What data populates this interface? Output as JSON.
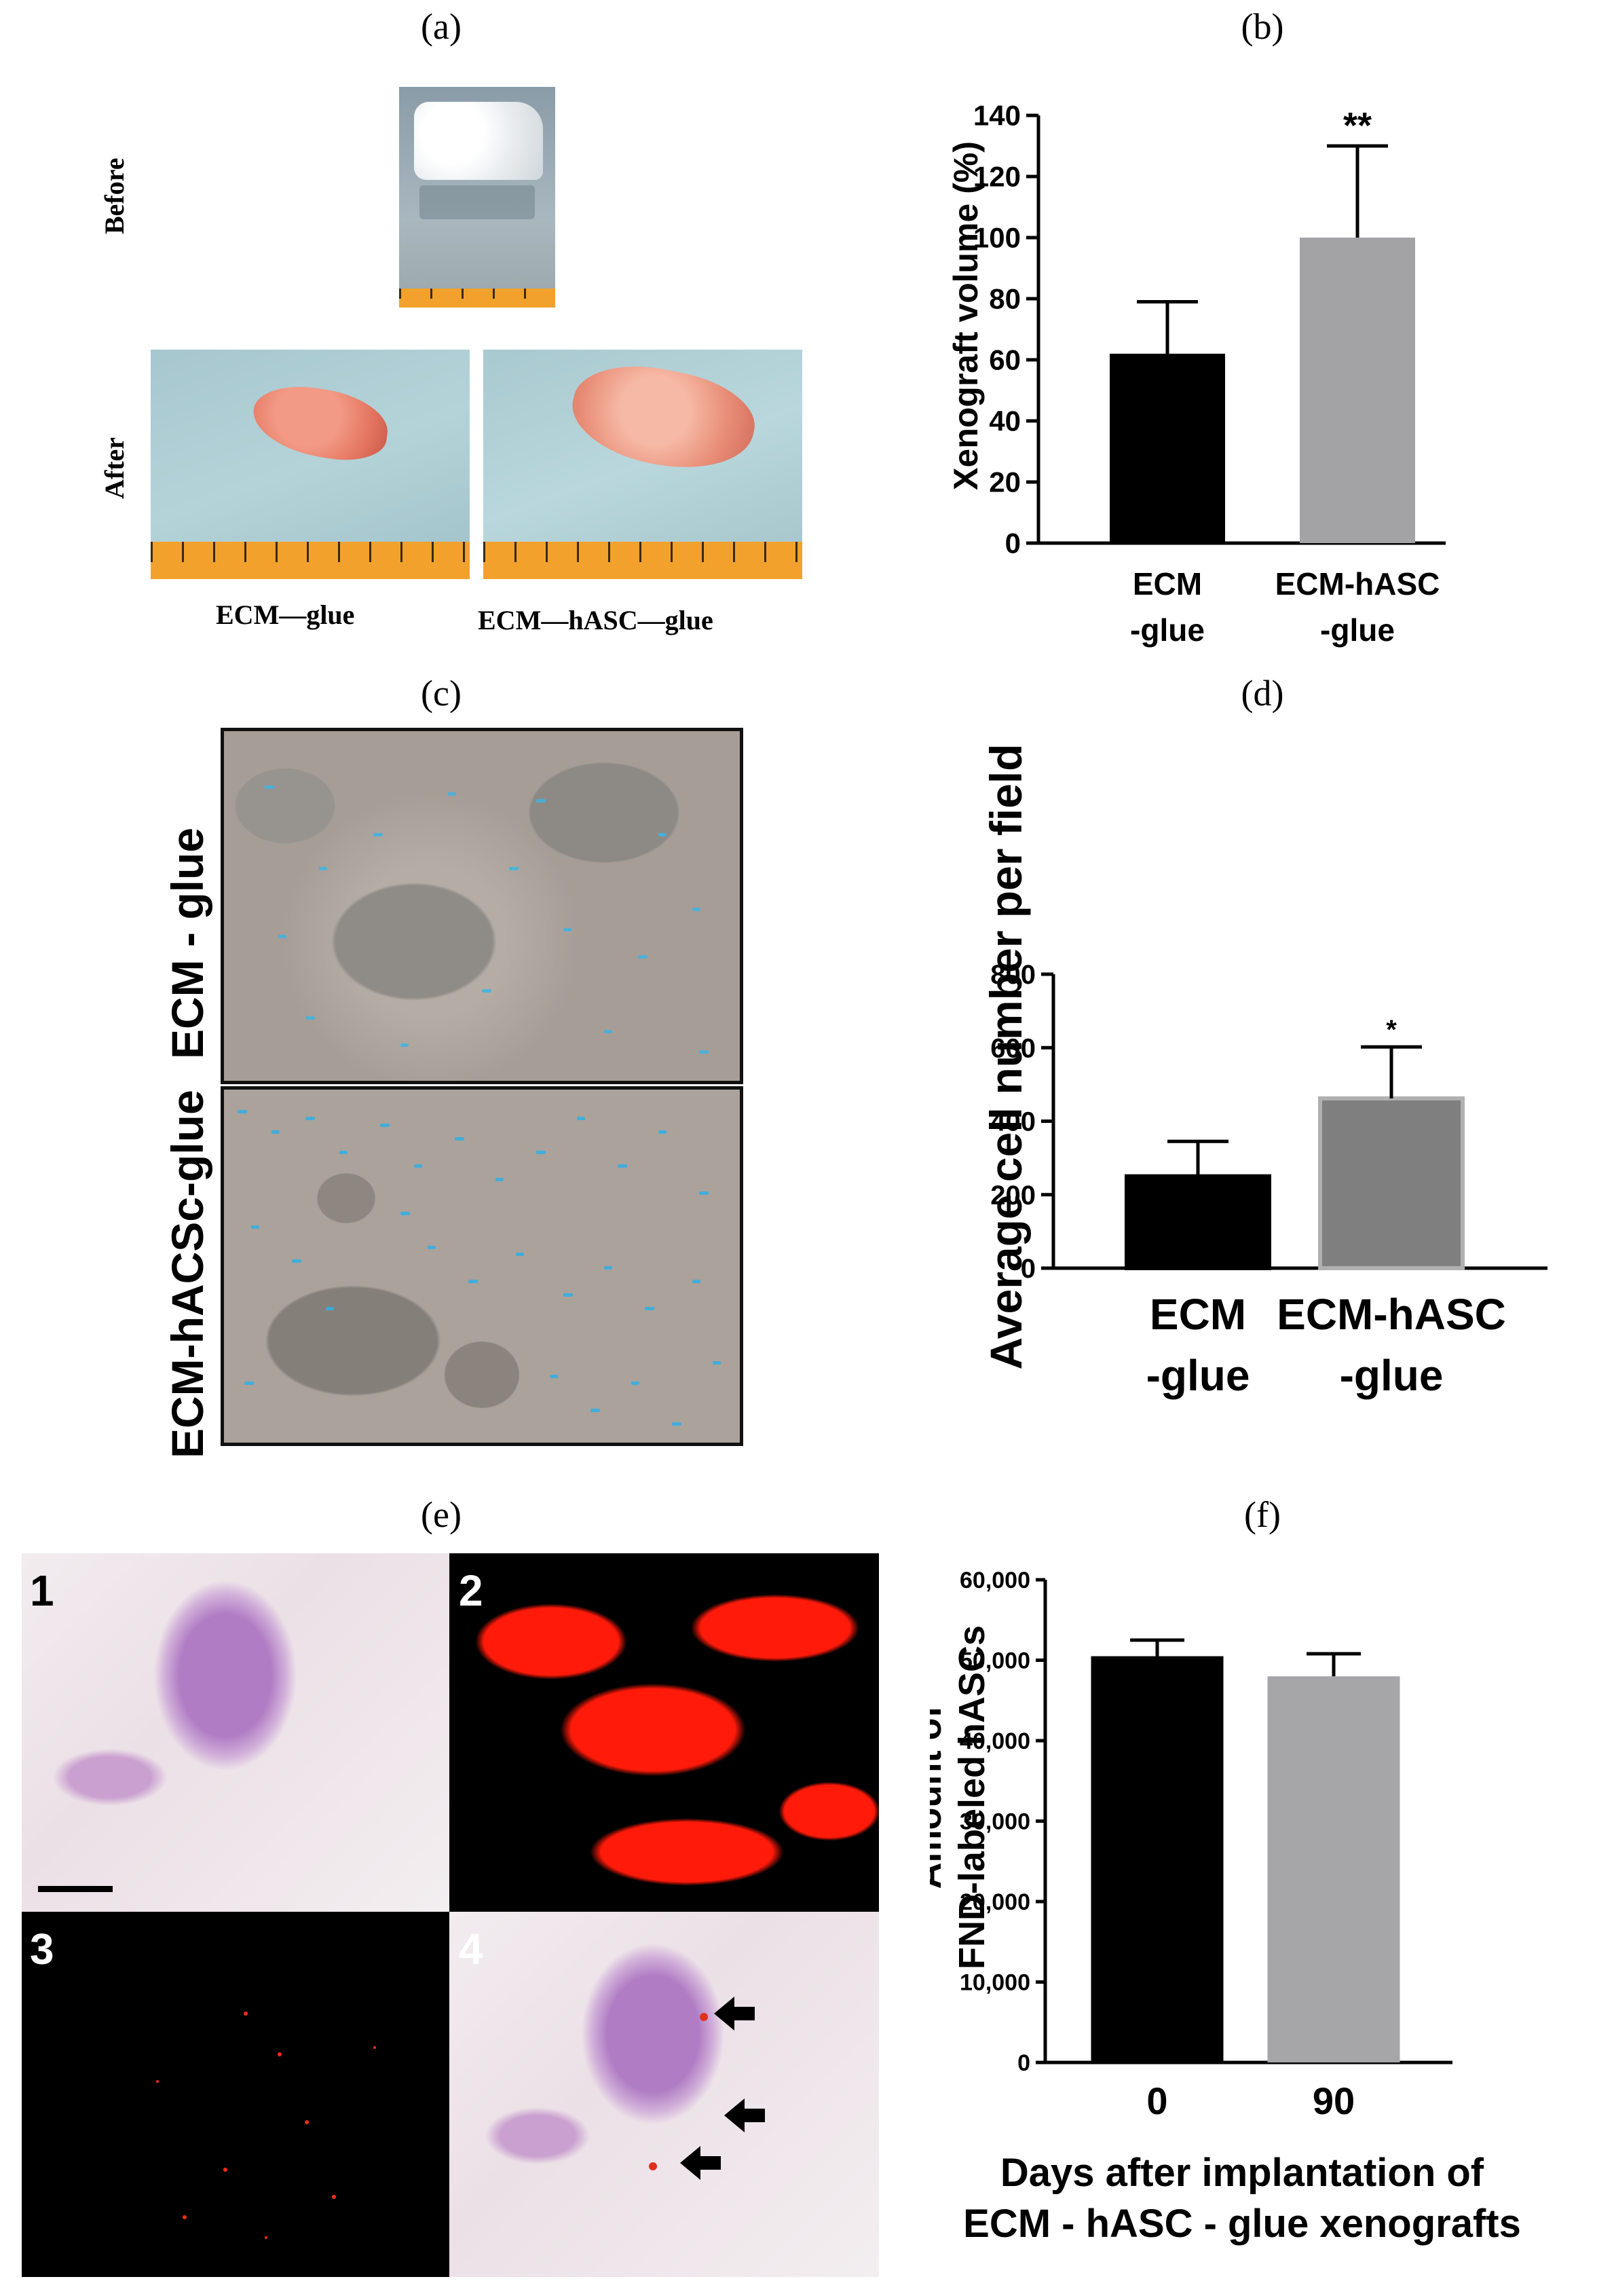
{
  "panels": {
    "a": {
      "label": "(a)",
      "before_label": "Before",
      "after_label": "After",
      "caption_left": "ECM—glue",
      "caption_right": "ECM—hASC—glue"
    },
    "b": {
      "label": "(b)"
    },
    "c": {
      "label": "(c)",
      "top_label": "ECM - glue",
      "bottom_label": "ECM-hACSc-glue"
    },
    "d": {
      "label": "(d)"
    },
    "e": {
      "label": "(e)",
      "tile_numbers": [
        "1",
        "2",
        "3",
        "4"
      ]
    },
    "f": {
      "label": "(f)"
    }
  },
  "colors": {
    "black_bar": "#000000",
    "gray_bar_b": "#a3a3a6",
    "gray_bar_d": "#7f7f7f",
    "gray_bar_f": "#a6a6a9"
  },
  "chart_data": [
    {
      "id": "b",
      "type": "bar",
      "categories": [
        "ECM\n-glue",
        "ECM-hASC\n-glue"
      ],
      "values": [
        62,
        100
      ],
      "error": [
        17,
        30
      ],
      "significance": [
        "",
        "**"
      ],
      "ylabel": "Xenograft volume (%)",
      "xlabel": "",
      "ylim": [
        0,
        140
      ],
      "yticks": [
        "0",
        "20",
        "40",
        "60",
        "80",
        "100",
        "120",
        "140"
      ]
    },
    {
      "id": "d",
      "type": "bar",
      "categories": [
        "ECM\n-glue",
        "ECM-hASC\n-glue"
      ],
      "values": [
        250,
        462
      ],
      "error": [
        95,
        140
      ],
      "significance": [
        "",
        "*"
      ],
      "ylabel": "Average cell number per field",
      "xlabel": "",
      "ylim": [
        0,
        800
      ],
      "yticks": [
        "0",
        "200",
        "400",
        "600",
        "800"
      ]
    },
    {
      "id": "f",
      "type": "bar",
      "categories": [
        "0",
        "90"
      ],
      "values": [
        50500,
        48000
      ],
      "error": [
        2000,
        2800
      ],
      "significance": [
        "",
        ""
      ],
      "ylabel": "Amount of\nFND-labeled hASCs",
      "xlabel": "Days after implantation of\nECM - hASC - glue xenografts",
      "ylim": [
        0,
        60000
      ],
      "yticks": [
        "0",
        "10,000",
        "20,000",
        "30,000",
        "40,000",
        "50,000",
        "60,000"
      ]
    }
  ]
}
